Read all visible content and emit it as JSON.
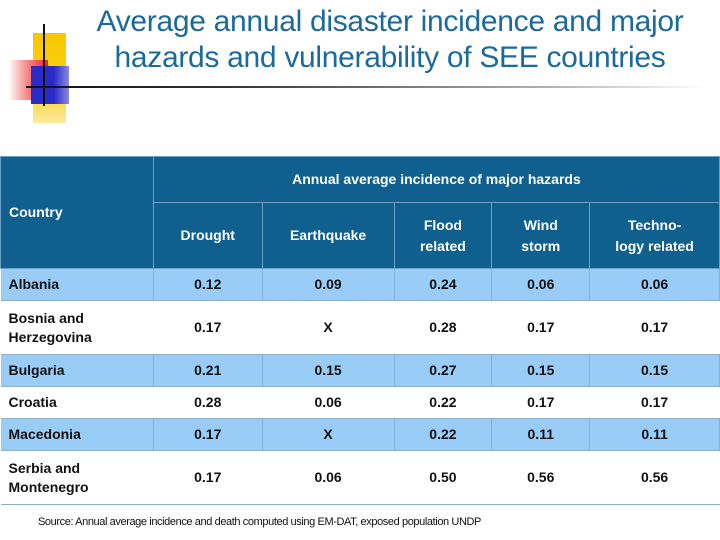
{
  "slide": {
    "title_line1": "Average annual disaster incidence and major",
    "title_line2": "hazards and vulnerability of SEE countries",
    "source": "Source: Annual average  incidence and death computed using EM-DAT, exposed population UNDP"
  },
  "table": {
    "country_header": "Country",
    "group_header": "Annual average incidence of major hazards",
    "columns": [
      "Drought",
      "Earthquake",
      "Flood related",
      "Wind storm",
      "Techno-logy related"
    ],
    "columns_display": [
      [
        "Drought"
      ],
      [
        "Earthquake"
      ],
      [
        "Flood",
        "related"
      ],
      [
        "Wind",
        "storm"
      ],
      [
        "Techno-",
        "logy related"
      ]
    ],
    "rows": [
      {
        "country": "Albania",
        "values": [
          "0.12",
          "0.09",
          "0.24",
          "0.06",
          "0.06"
        ]
      },
      {
        "country": "Bosnia and Herzegovina",
        "values": [
          "0.17",
          "X",
          "0.28",
          "0.17",
          "0.17"
        ]
      },
      {
        "country": "Bulgaria",
        "values": [
          "0.21",
          "0.15",
          "0.27",
          "0.15",
          "0.15"
        ]
      },
      {
        "country": "Croatia",
        "values": [
          "0.28",
          "0.06",
          "0.22",
          "0.17",
          "0.17"
        ]
      },
      {
        "country": "Macedonia",
        "values": [
          "0.17",
          "X",
          "0.22",
          "0.11",
          "0.11"
        ]
      },
      {
        "country": "Serbia and Montenegro",
        "values": [
          "0.17",
          "0.06",
          "0.50",
          "0.56",
          "0.56"
        ]
      }
    ]
  },
  "colors": {
    "title": "#1b6a9c",
    "header_bg": "#0f5f8f",
    "row_band": "#99cdf8"
  }
}
